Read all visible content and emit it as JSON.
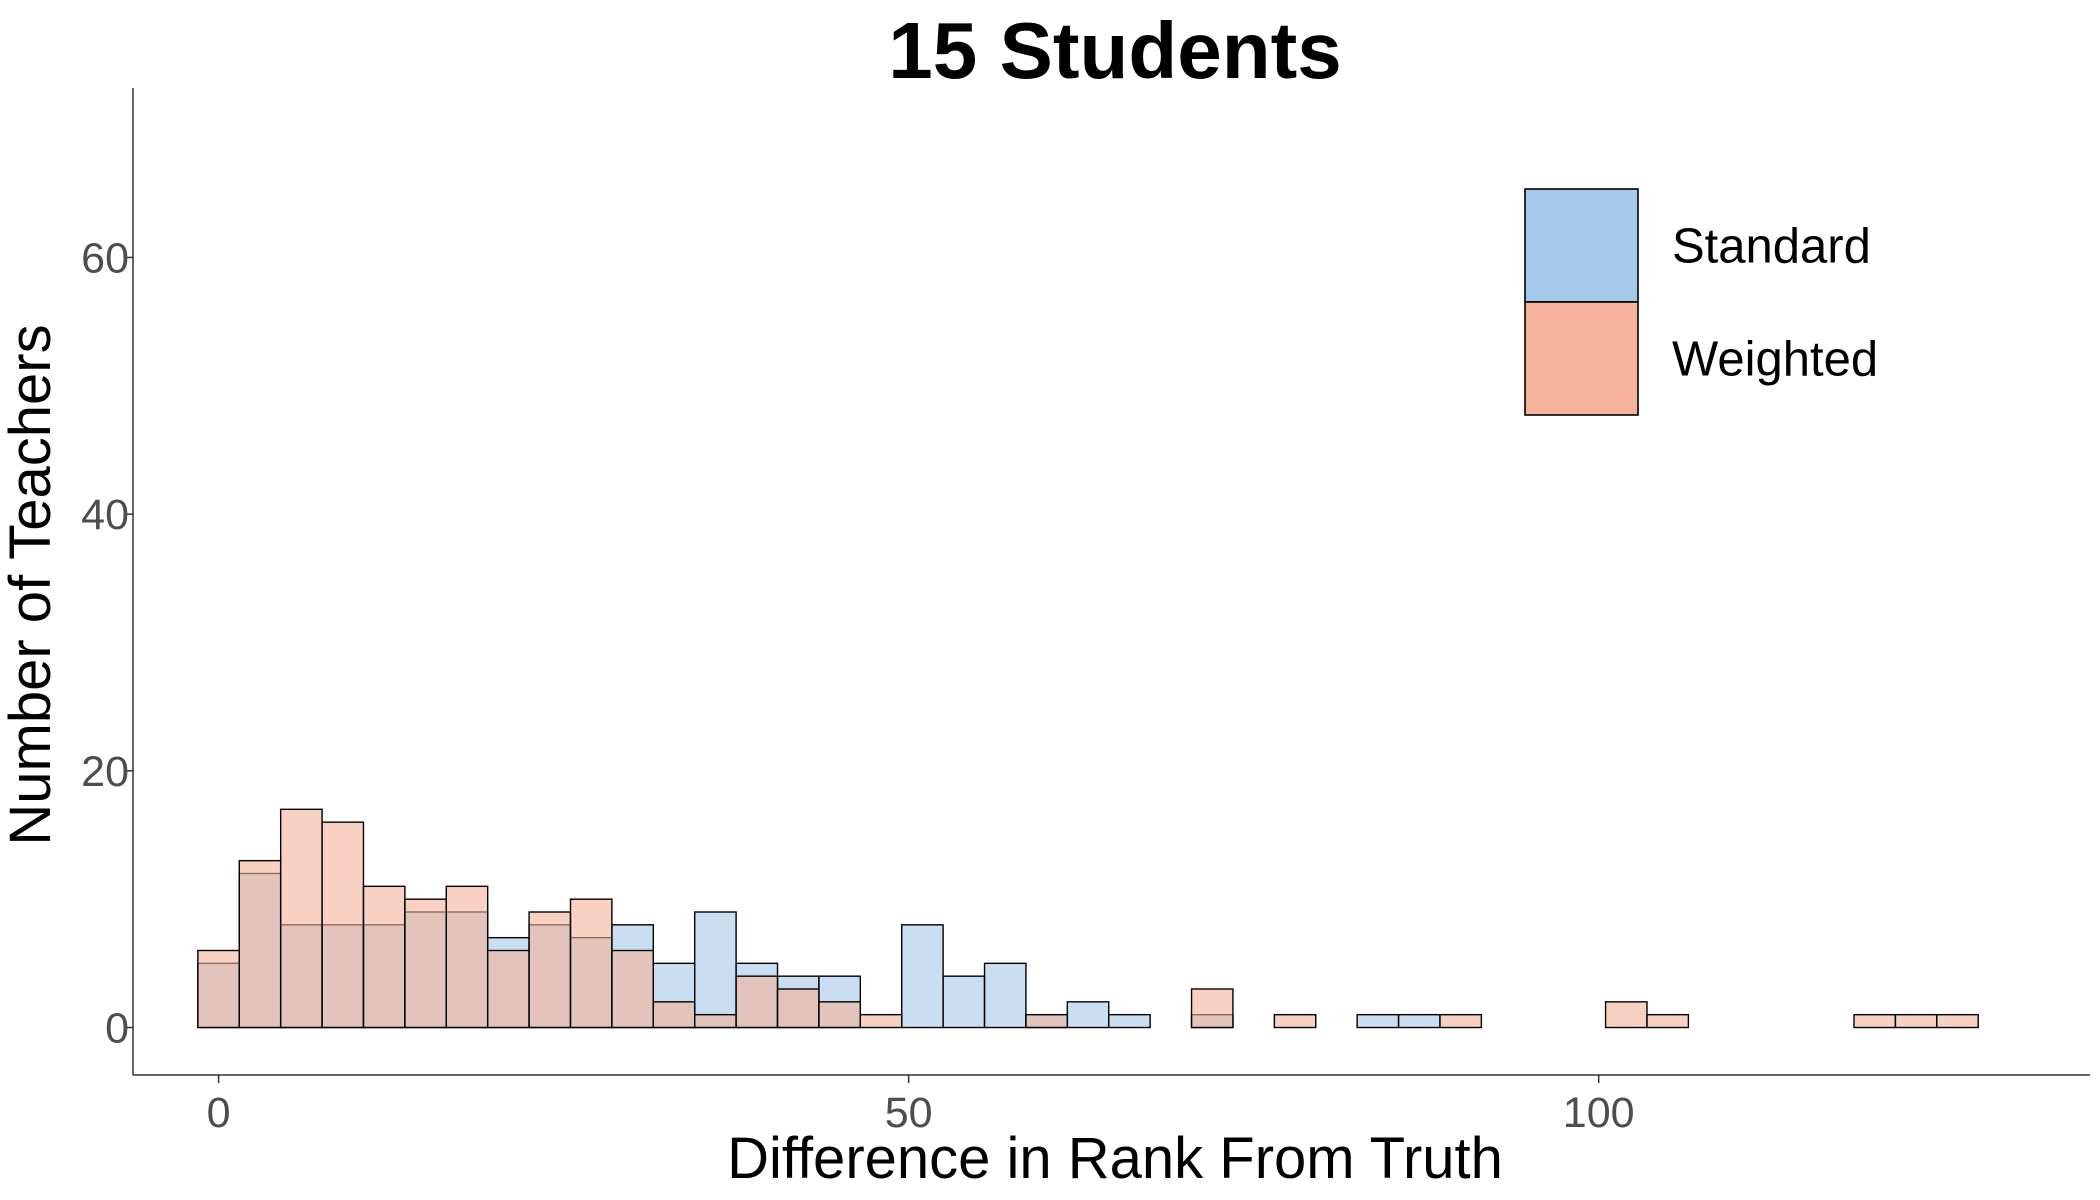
{
  "chart_data": {
    "type": "bar",
    "title": "15 Students",
    "xlabel": "Difference in Rank From Truth",
    "ylabel": "Number of Teachers",
    "xlim": [
      -6.2,
      135.6
    ],
    "ylim": [
      -3.7,
      73.2
    ],
    "x_ticks": [
      0,
      50,
      100
    ],
    "y_ticks": [
      0,
      20,
      40,
      60
    ],
    "grid": false,
    "legend_position": "top-right",
    "bin_width": 3,
    "bin_start": -1.5,
    "series": [
      {
        "name": "Standard",
        "color": "#a6c8ea",
        "opacity": 0.6,
        "values": [
          5,
          12,
          8,
          8,
          8,
          9,
          9,
          7,
          8,
          7,
          8,
          5,
          9,
          5,
          4,
          4,
          0,
          8,
          4,
          5,
          1,
          2,
          1,
          0,
          1,
          0,
          0,
          0,
          1,
          1,
          0,
          0,
          0,
          0,
          0,
          0,
          0,
          0,
          0,
          0,
          0,
          0,
          0
        ]
      },
      {
        "name": "Weighted",
        "color": "#f4b39a",
        "opacity": 0.6,
        "values": [
          6,
          13,
          17,
          16,
          11,
          10,
          11,
          6,
          9,
          10,
          6,
          2,
          1,
          4,
          3,
          2,
          1,
          0,
          0,
          0,
          1,
          0,
          0,
          0,
          3,
          0,
          1,
          0,
          0,
          0,
          1,
          0,
          0,
          0,
          2,
          1,
          0,
          0,
          0,
          0,
          1,
          1,
          1
        ]
      }
    ]
  }
}
